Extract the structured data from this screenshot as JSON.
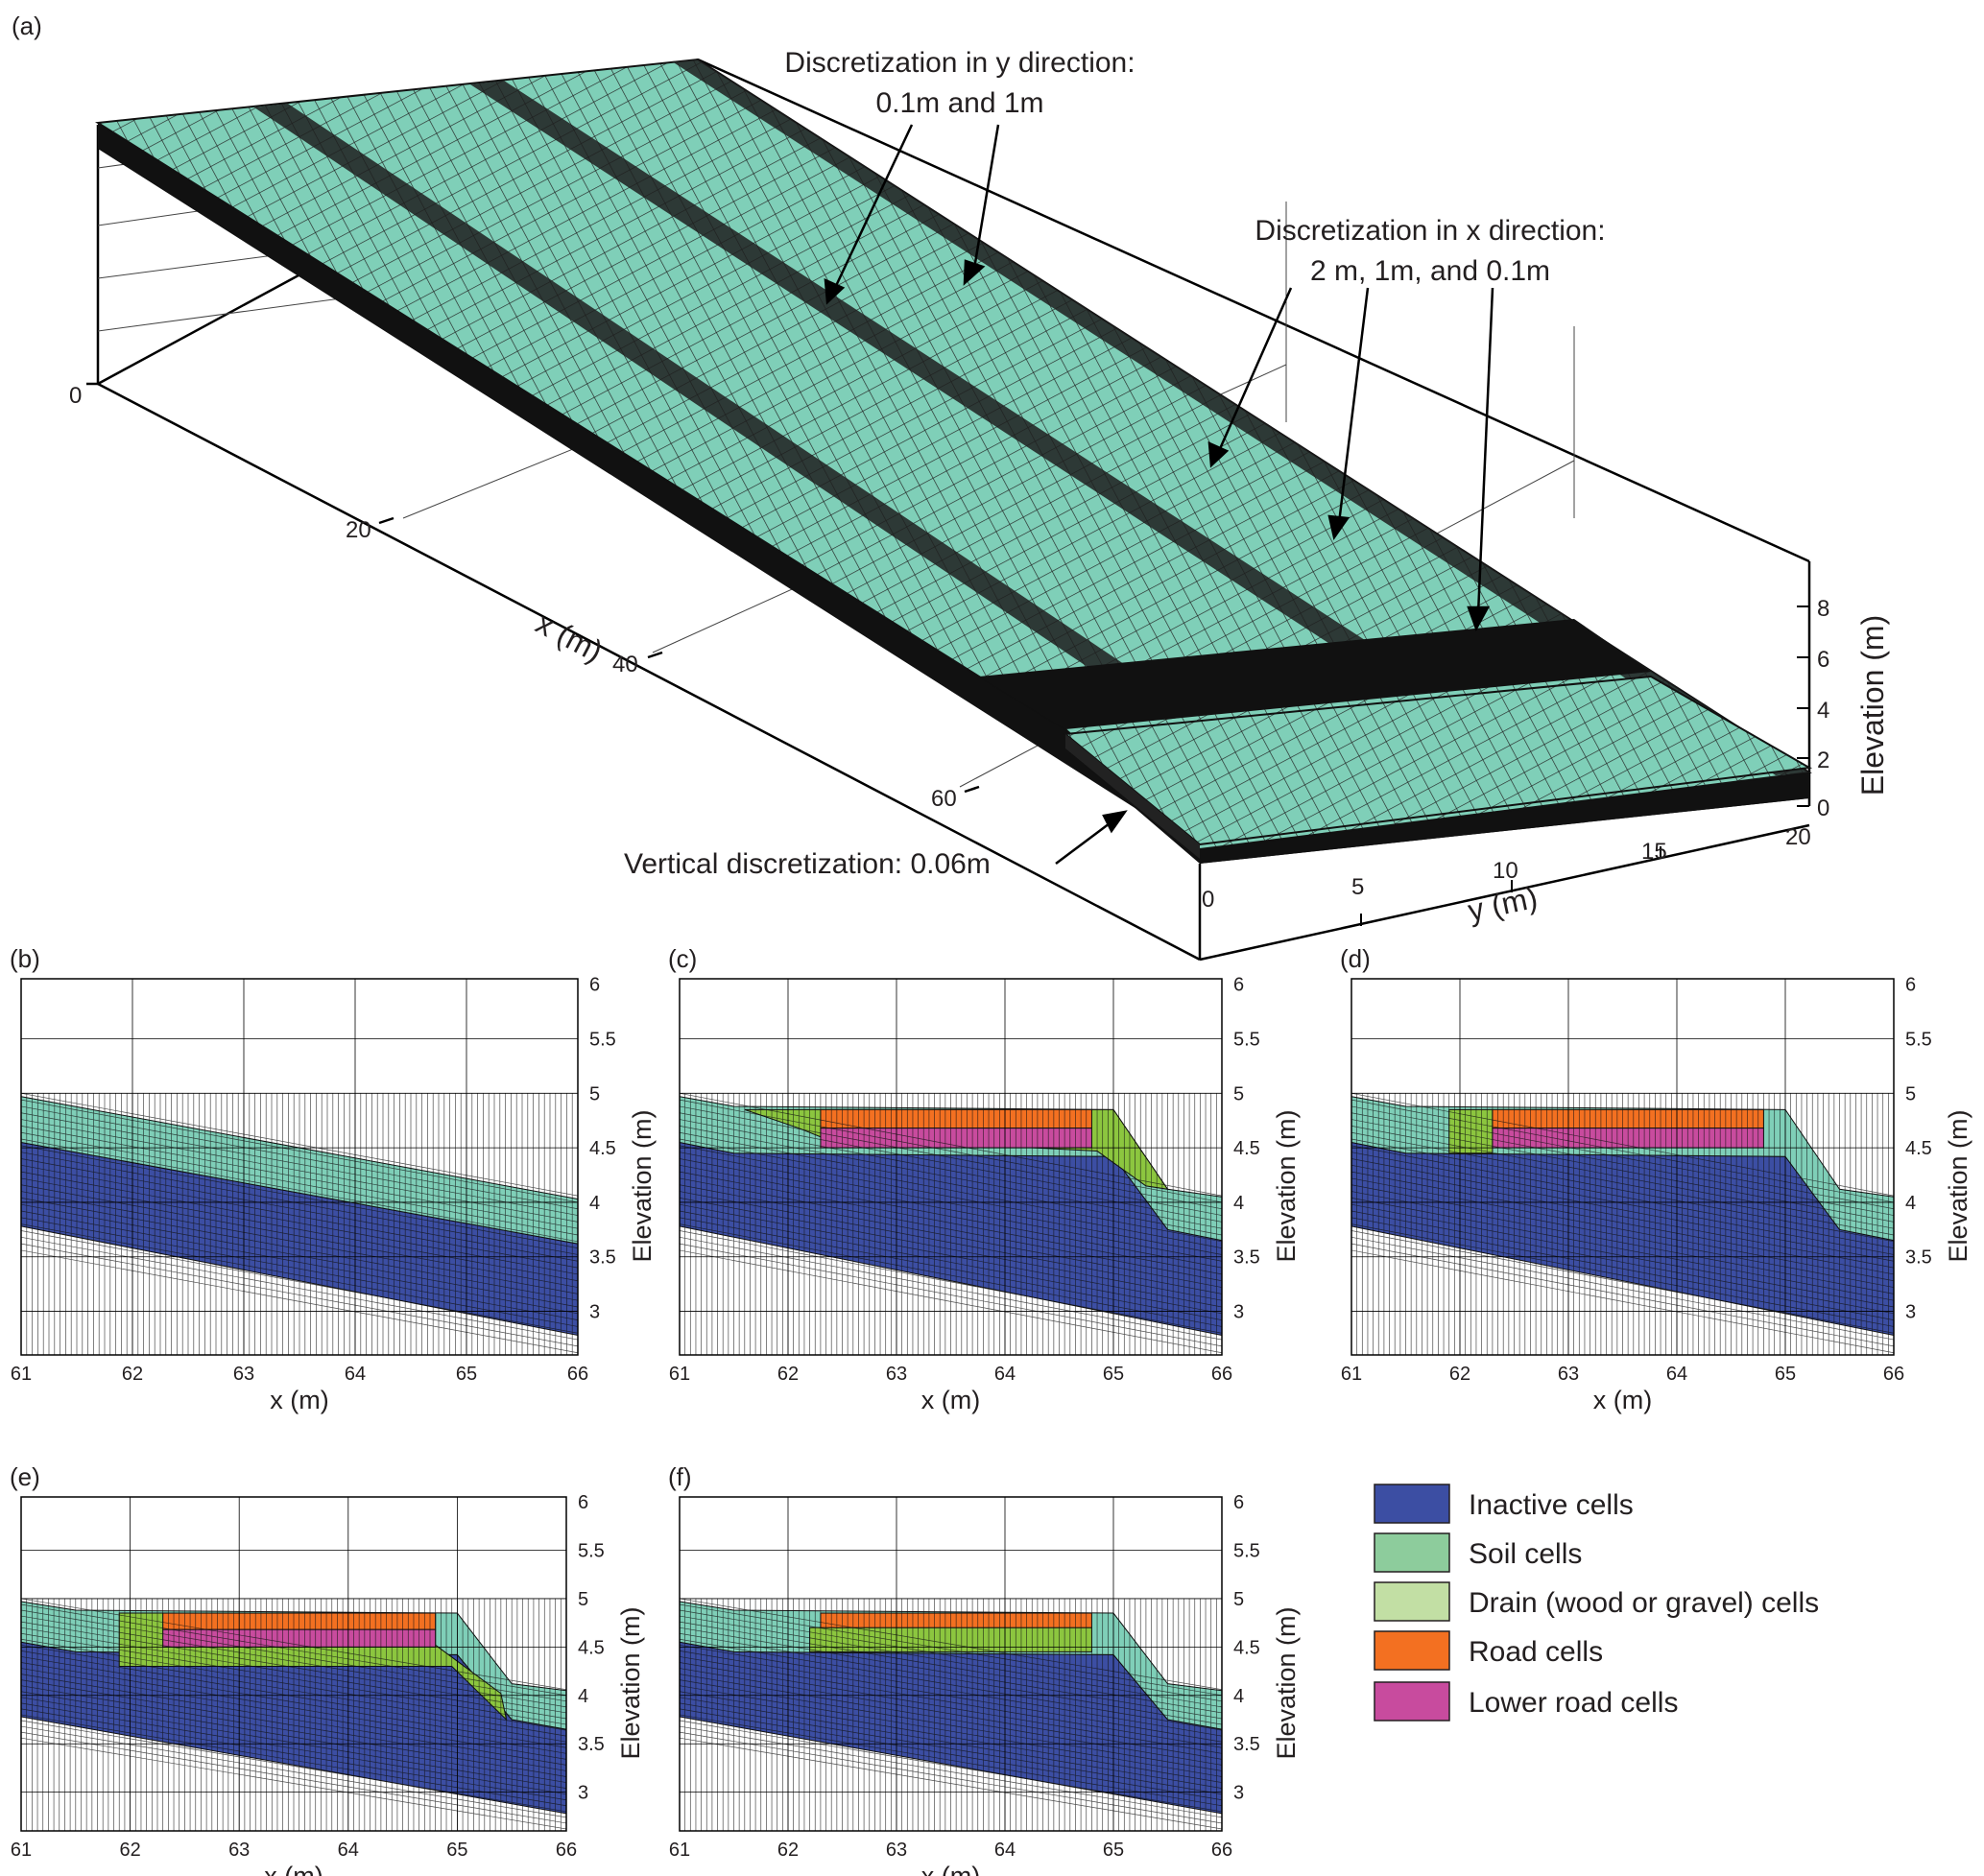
{
  "panel_a": {
    "letter": "(a)",
    "annotations": {
      "y_disc_line1": "Discretization in y direction:",
      "y_disc_line2": "0.1m and 1m",
      "x_disc_line1": "Discretization in x direction:",
      "x_disc_line2": "2 m, 1m, and 0.1m",
      "vertical_disc": "Vertical discretization: 0.06m"
    },
    "x_axis": {
      "label": "x (m)",
      "ticks": [
        "0",
        "20",
        "40",
        "60"
      ]
    },
    "y_axis": {
      "label": "y (m)",
      "ticks": [
        "0",
        "5",
        "10",
        "15",
        "20"
      ]
    },
    "z_axis": {
      "label": "Elevation (m)",
      "ticks": [
        "0",
        "2",
        "4",
        "6",
        "8"
      ]
    }
  },
  "cross_sections": {
    "x_label": "x (m)",
    "y_label": "Elevation (m)",
    "x_ticks": [
      "61",
      "62",
      "63",
      "64",
      "65",
      "66"
    ],
    "y_ticks": [
      "3",
      "3.5",
      "4",
      "4.5",
      "5",
      "5.5",
      "6"
    ],
    "panels": [
      {
        "letter": "(b)",
        "design": "none"
      },
      {
        "letter": "(c)",
        "design": "road-with-drain-wedge"
      },
      {
        "letter": "(d)",
        "design": "road-with-drain-block"
      },
      {
        "letter": "(e)",
        "design": "road-with-drain-layer"
      },
      {
        "letter": "(f)",
        "design": "road-without-lower-road"
      }
    ]
  },
  "legend": {
    "items": [
      {
        "label": "Inactive cells",
        "color": "#3c4ea3"
      },
      {
        "label": "Soil cells",
        "color": "#8dcc9c"
      },
      {
        "label": "Drain (wood or gravel) cells",
        "color": "#c2dfa4"
      },
      {
        "label": "Road cells",
        "color": "#f37021"
      },
      {
        "label": "Lower road cells",
        "color": "#c84b9e"
      }
    ]
  },
  "colors": {
    "inactive": "#3c4ea3",
    "soil_mesh": "#7fcfb8",
    "drain_mesh": "#8cc63f",
    "road_mesh": "#f37021",
    "lower_road_mesh": "#c84b9e",
    "dark_band": "#1f1f1f"
  }
}
